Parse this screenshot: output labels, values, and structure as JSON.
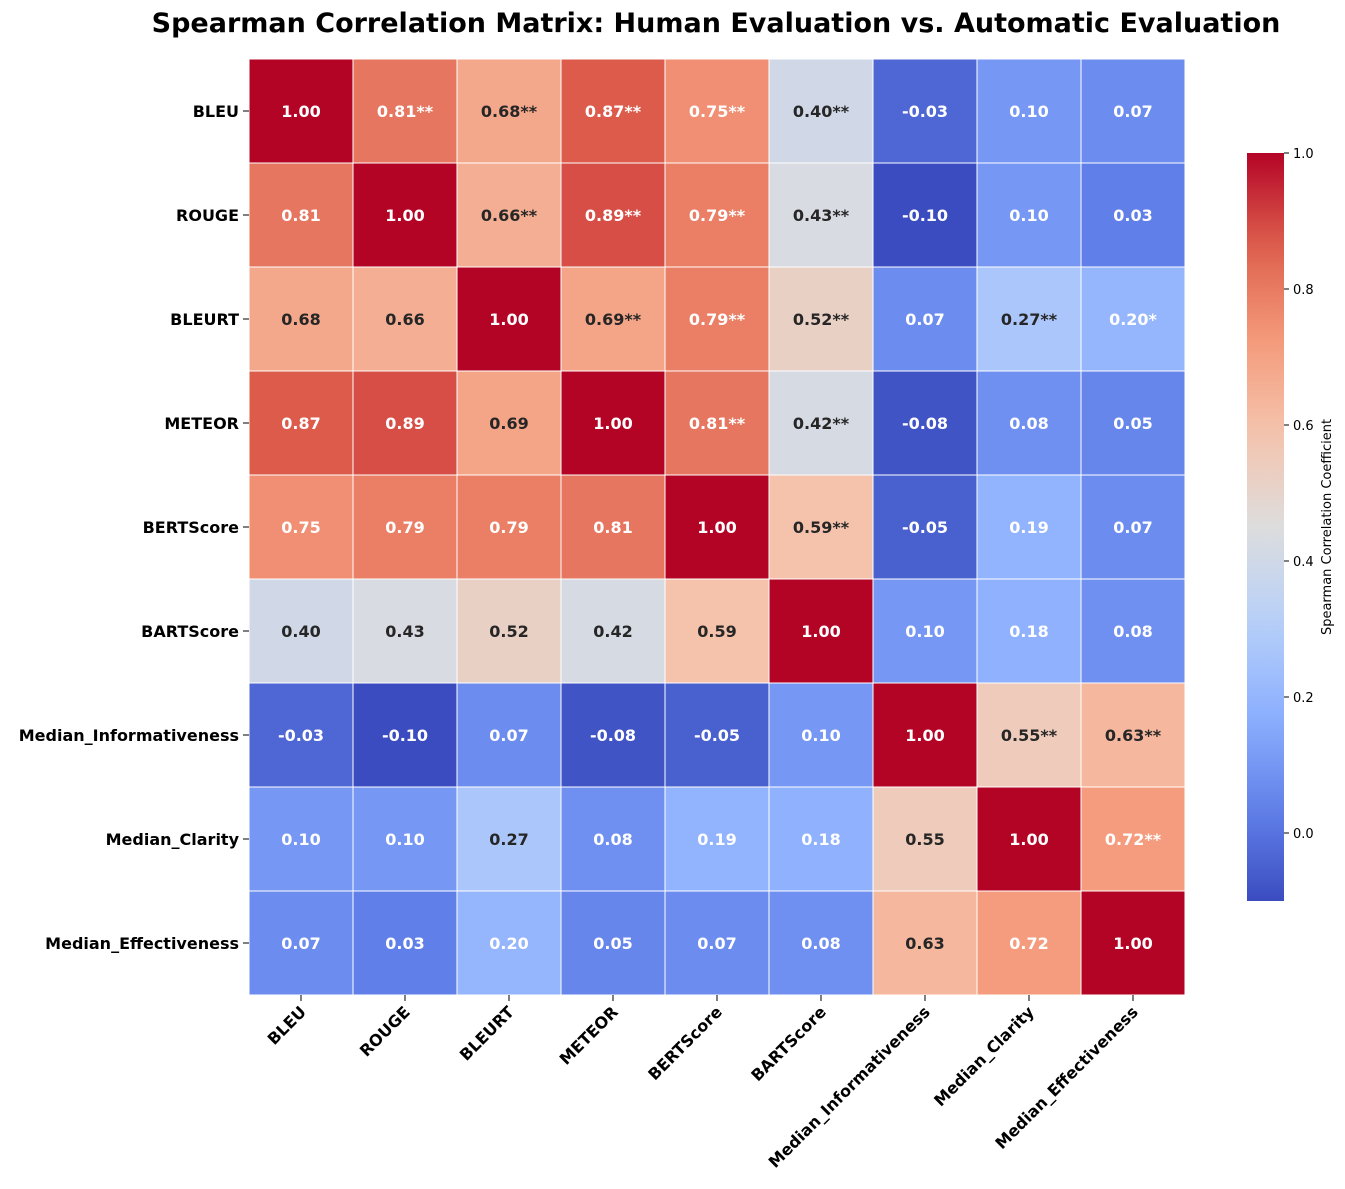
{
  "chart_data": {
    "type": "heatmap",
    "title": "Spearman Correlation Matrix: Human Evaluation vs. Automatic Evaluation",
    "rows": [
      "BLEU",
      "ROUGE",
      "BLEURT",
      "METEOR",
      "BERTScore",
      "BARTScore",
      "Median_Informativeness",
      "Median_Clarity",
      "Median_Effectiveness"
    ],
    "columns": [
      "BLEU",
      "ROUGE",
      "BLEURT",
      "METEOR",
      "BERTScore",
      "BARTScore",
      "Median_Informativeness",
      "Median_Clarity",
      "Median_Effectiveness"
    ],
    "values": [
      [
        1.0,
        0.81,
        0.68,
        0.87,
        0.75,
        0.4,
        -0.03,
        0.1,
        0.07
      ],
      [
        0.81,
        1.0,
        0.66,
        0.89,
        0.79,
        0.43,
        -0.1,
        0.1,
        0.03
      ],
      [
        0.68,
        0.66,
        1.0,
        0.69,
        0.79,
        0.52,
        0.07,
        0.27,
        0.2
      ],
      [
        0.87,
        0.89,
        0.69,
        1.0,
        0.81,
        0.42,
        -0.08,
        0.08,
        0.05
      ],
      [
        0.75,
        0.79,
        0.79,
        0.81,
        1.0,
        0.59,
        -0.05,
        0.19,
        0.07
      ],
      [
        0.4,
        0.43,
        0.52,
        0.42,
        0.59,
        1.0,
        0.1,
        0.18,
        0.08
      ],
      [
        -0.03,
        -0.1,
        0.07,
        -0.08,
        -0.05,
        0.1,
        1.0,
        0.55,
        0.63
      ],
      [
        0.1,
        0.1,
        0.27,
        0.08,
        0.19,
        0.18,
        0.55,
        1.0,
        0.72
      ],
      [
        0.07,
        0.03,
        0.2,
        0.05,
        0.07,
        0.08,
        0.63,
        0.72,
        1.0
      ]
    ],
    "annotations": [
      [
        "1.00",
        "0.81**",
        "0.68**",
        "0.87**",
        "0.75**",
        "0.40**",
        "-0.03",
        "0.10",
        "0.07"
      ],
      [
        "0.81",
        "1.00",
        "0.66**",
        "0.89**",
        "0.79**",
        "0.43**",
        "-0.10",
        "0.10",
        "0.03"
      ],
      [
        "0.68",
        "0.66",
        "1.00",
        "0.69**",
        "0.79**",
        "0.52**",
        "0.07",
        "0.27**",
        "0.20*"
      ],
      [
        "0.87",
        "0.89",
        "0.69",
        "1.00",
        "0.81**",
        "0.42**",
        "-0.08",
        "0.08",
        "0.05"
      ],
      [
        "0.75",
        "0.79",
        "0.79",
        "0.81",
        "1.00",
        "0.59**",
        "-0.05",
        "0.19",
        "0.07"
      ],
      [
        "0.40",
        "0.43",
        "0.52",
        "0.42",
        "0.59",
        "1.00",
        "0.10",
        "0.18",
        "0.08"
      ],
      [
        "-0.03",
        "-0.10",
        "0.07",
        "-0.08",
        "-0.05",
        "0.10",
        "1.00",
        "0.55**",
        "0.63**"
      ],
      [
        "0.10",
        "0.10",
        "0.27",
        "0.08",
        "0.19",
        "0.18",
        "0.55",
        "1.00",
        "0.72**"
      ],
      [
        "0.07",
        "0.03",
        "0.20",
        "0.05",
        "0.07",
        "0.08",
        "0.63",
        "0.72",
        "1.00"
      ]
    ],
    "colormap": "coolwarm",
    "vmin": -0.1,
    "vmax": 1.0,
    "colorbar": {
      "label": "Spearman Correlation Coefficient",
      "ticks": [
        "0.0",
        "0.2",
        "0.4",
        "0.6",
        "0.8",
        "1.0"
      ],
      "tick_values": [
        0.0,
        0.2,
        0.4,
        0.6,
        0.8,
        1.0
      ],
      "placement": "right"
    },
    "grid": false
  }
}
